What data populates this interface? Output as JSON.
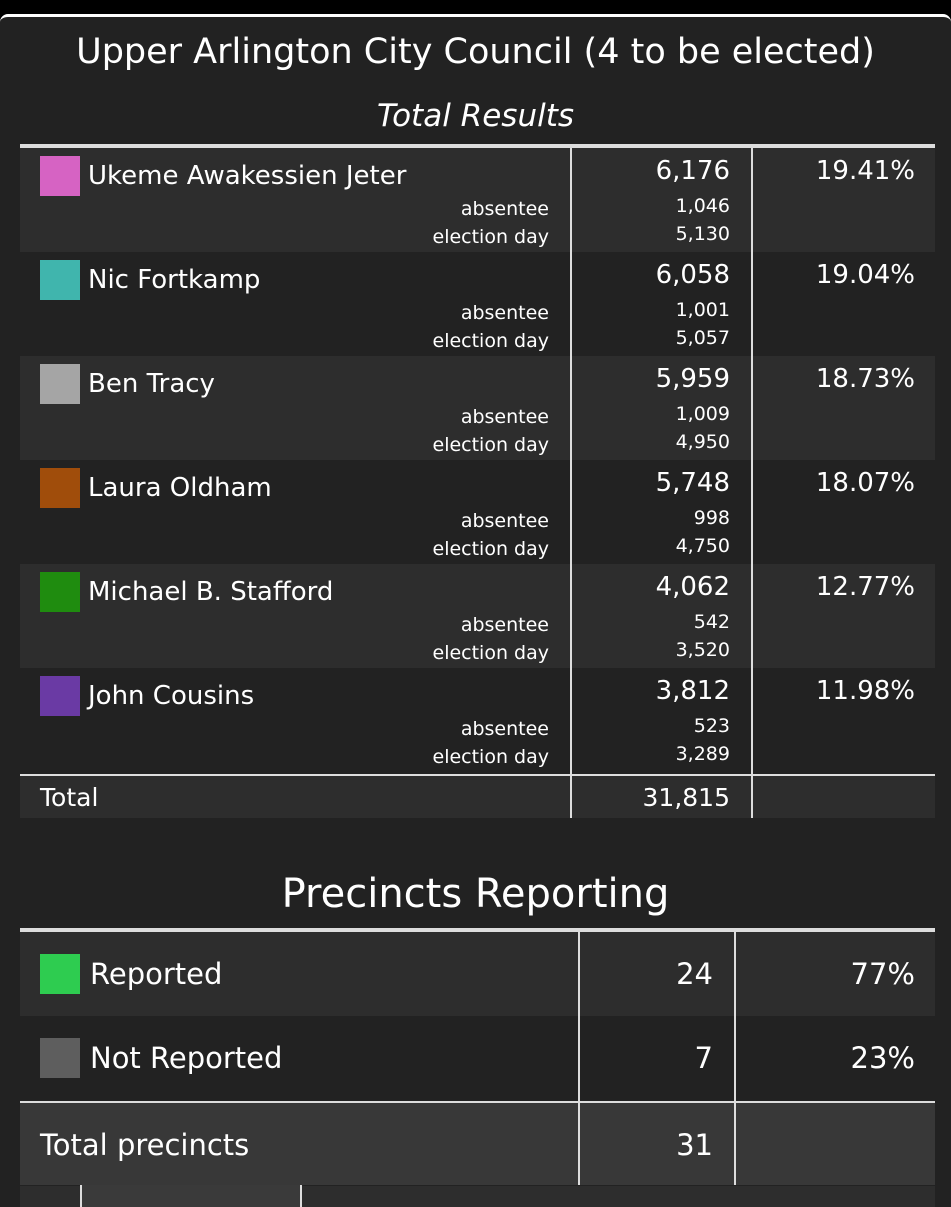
{
  "race": {
    "title": "Upper Arlington City Council (4 to be elected)",
    "subtitle": "Total Results",
    "absentee_label": "absentee",
    "election_day_label": "election day",
    "candidates": [
      {
        "name": "Ukeme Awakessien Jeter",
        "color": "#d663c3",
        "votes": "6,176",
        "absentee": "1,046",
        "election_day": "5,130",
        "percent": "19.41%"
      },
      {
        "name": "Nic Fortkamp",
        "color": "#40b5ad",
        "votes": "6,058",
        "absentee": "1,001",
        "election_day": "5,057",
        "percent": "19.04%"
      },
      {
        "name": "Ben Tracy",
        "color": "#a5a5a5",
        "votes": "5,959",
        "absentee": "1,009",
        "election_day": "4,950",
        "percent": "18.73%"
      },
      {
        "name": "Laura Oldham",
        "color": "#a04d0b",
        "votes": "5,748",
        "absentee": "998",
        "election_day": "4,750",
        "percent": "18.07%"
      },
      {
        "name": "Michael B. Stafford",
        "color": "#1f8c0f",
        "votes": "4,062",
        "absentee": "542",
        "election_day": "3,520",
        "percent": "12.77%"
      },
      {
        "name": "John Cousins",
        "color": "#6a3aa4",
        "votes": "3,812",
        "absentee": "523",
        "election_day": "3,289",
        "percent": "11.98%"
      }
    ],
    "total_label": "Total",
    "total_votes": "31,815"
  },
  "precincts": {
    "title": "Precincts Reporting",
    "rows": [
      {
        "label": "Reported",
        "color": "#2ecc50",
        "count": "24",
        "percent": "77%"
      },
      {
        "label": "Not Reported",
        "color": "#5e5e5e",
        "count": "7",
        "percent": "23%"
      }
    ],
    "total_label": "Total precincts",
    "total_count": "31"
  }
}
